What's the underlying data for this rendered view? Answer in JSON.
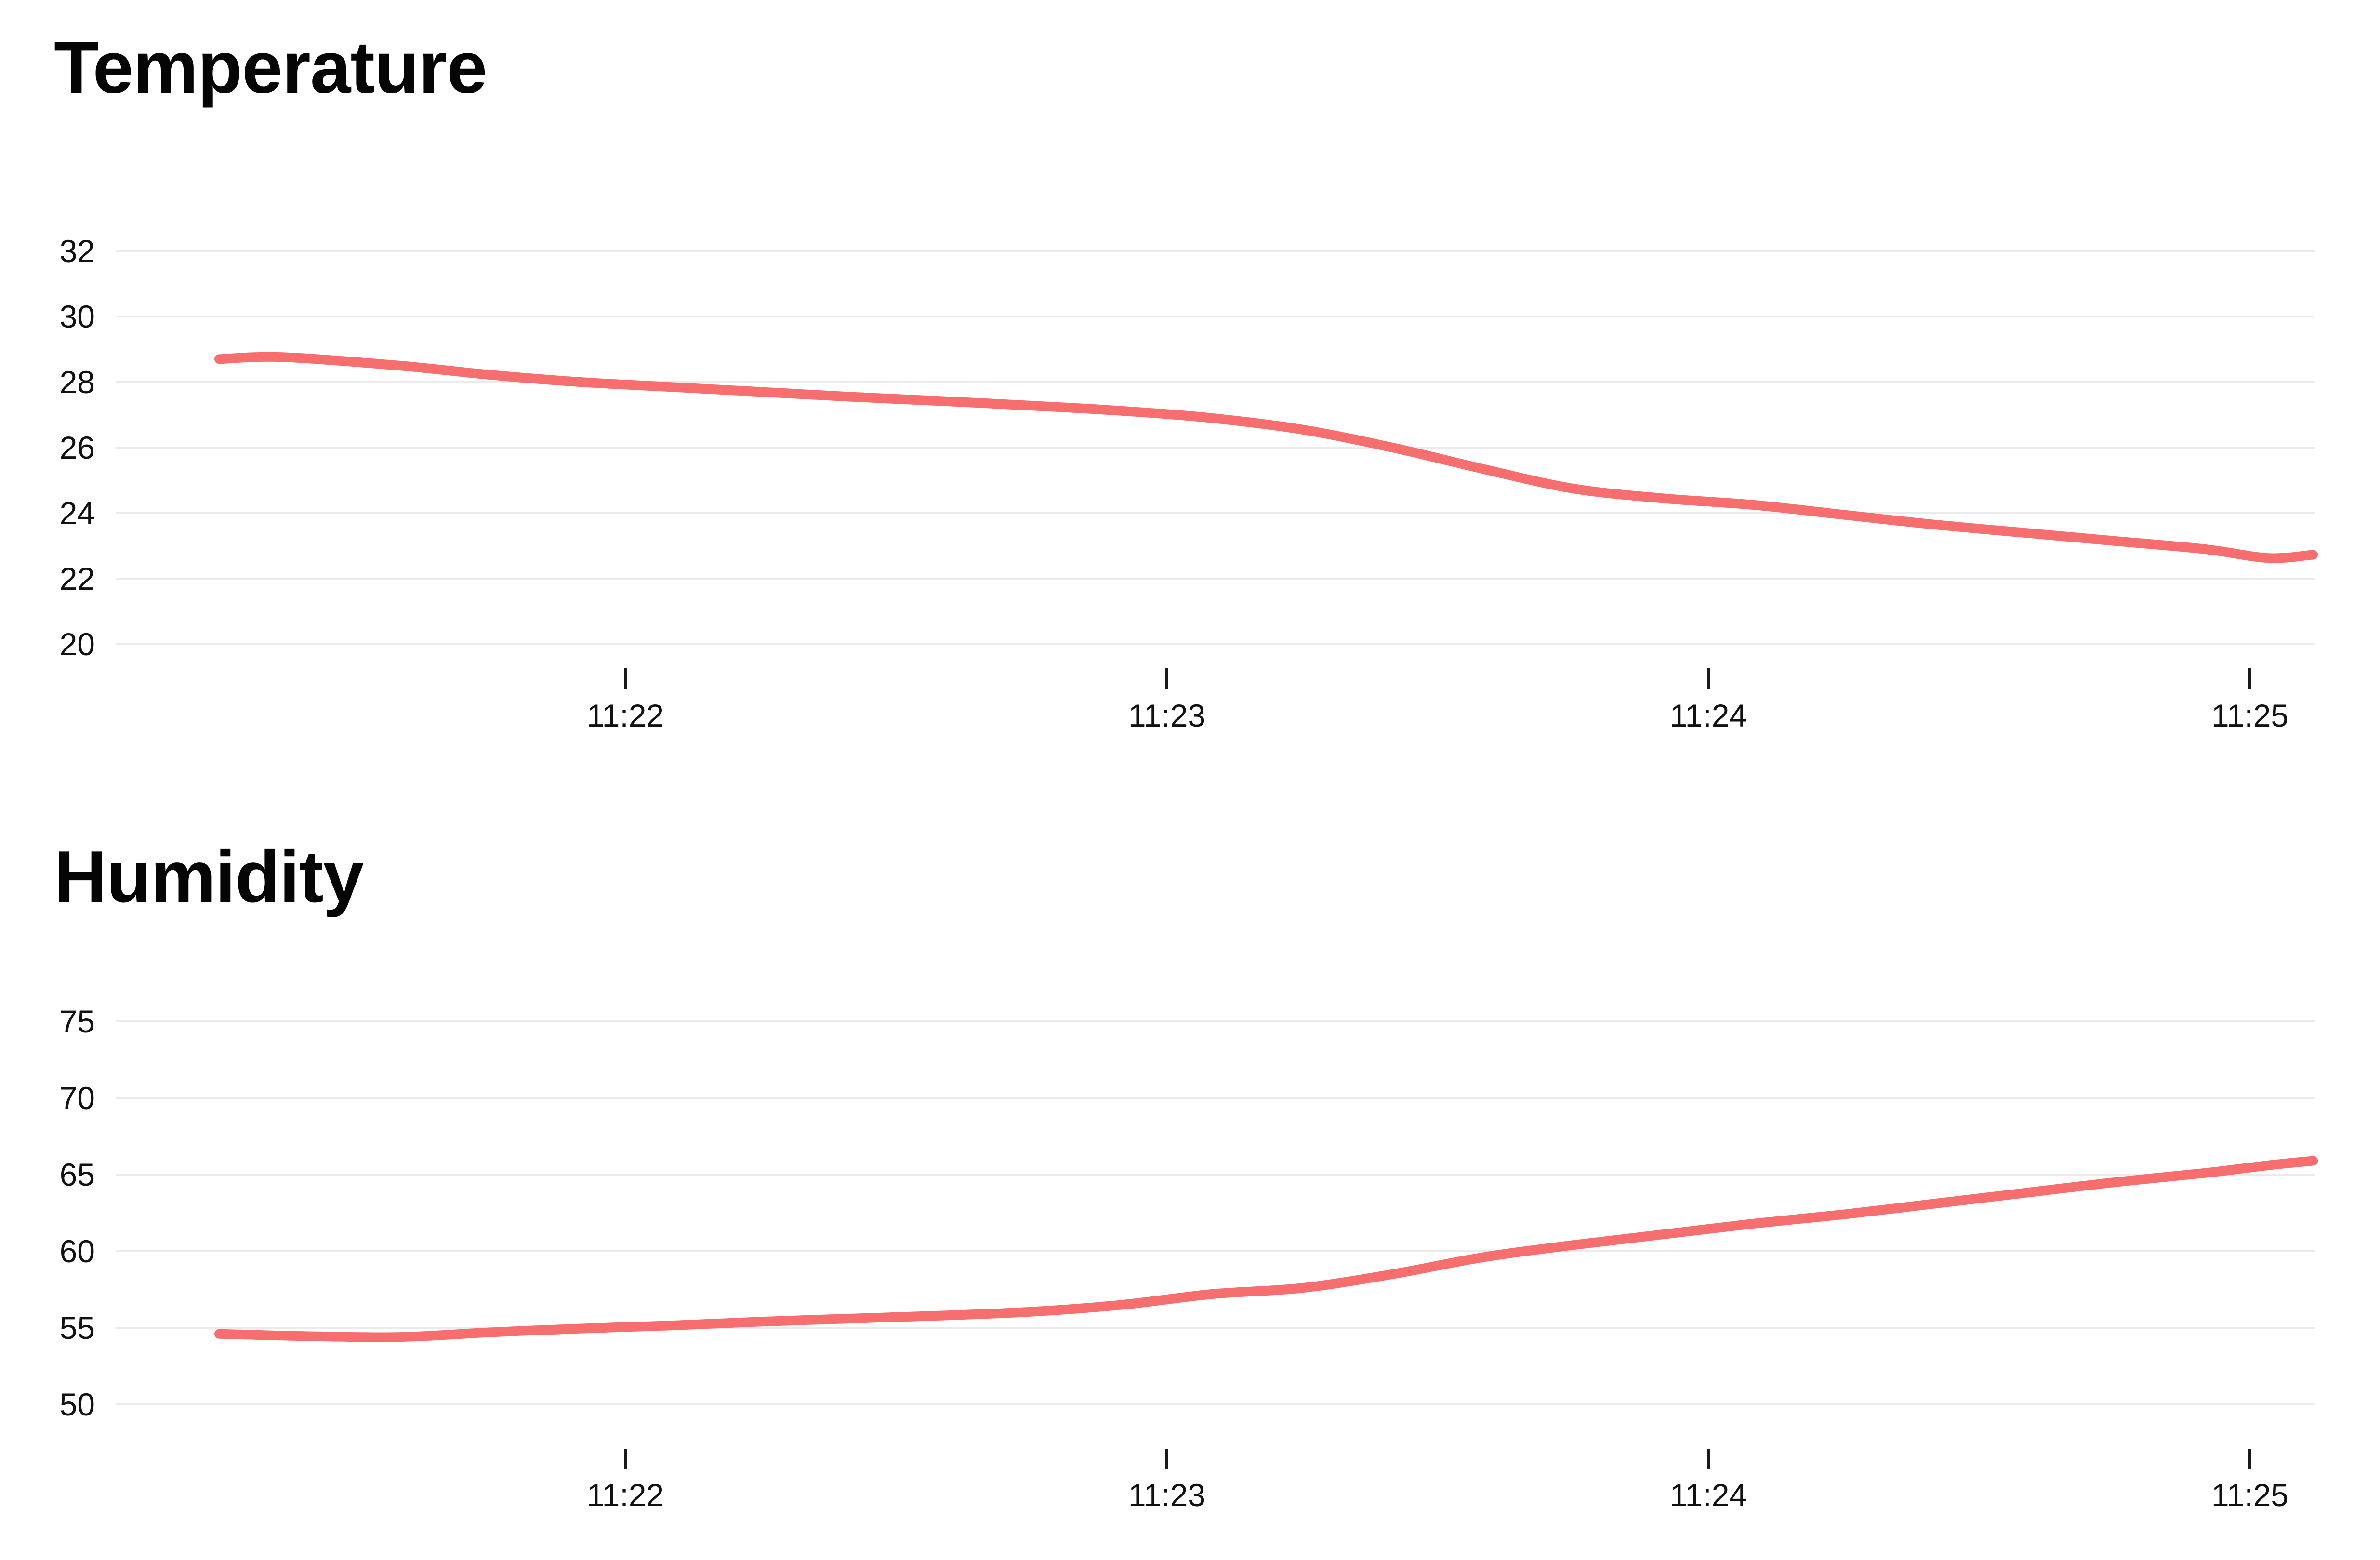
{
  "page": {
    "background_color": "#ffffff",
    "title_color": "#050505"
  },
  "chart_data": [
    {
      "type": "line",
      "title": "Temperature",
      "xlabel": "",
      "ylabel": "",
      "legend": "none",
      "grid": "horizontal-only",
      "line_color": "#f76e6e",
      "grid_color": "#ebebeb",
      "text_color": "#111111",
      "tick_color": "#1a1a1a",
      "y_tick_labels": [
        32,
        30,
        28,
        26,
        24,
        22,
        20
      ],
      "ylim": [
        20,
        32
      ],
      "x_tick_labels": [
        "11:22",
        "11:23",
        "11:24",
        "11:25"
      ],
      "x": [
        "11:21:15",
        "11:21:22",
        "11:21:35",
        "11:21:45",
        "11:21:55",
        "11:22:05",
        "11:22:15",
        "11:22:25",
        "11:22:35",
        "11:22:45",
        "11:22:55",
        "11:23:05",
        "11:23:15",
        "11:23:25",
        "11:23:35",
        "11:23:45",
        "11:23:55",
        "11:24:05",
        "11:24:15",
        "11:24:25",
        "11:24:35",
        "11:24:45",
        "11:24:55",
        "11:25:02",
        "11:25:07"
      ],
      "y": [
        28.7,
        28.76,
        28.5,
        28.22,
        28.0,
        27.85,
        27.7,
        27.55,
        27.42,
        27.28,
        27.12,
        26.9,
        26.55,
        26.0,
        25.35,
        24.75,
        24.45,
        24.25,
        23.95,
        23.65,
        23.4,
        23.15,
        22.9,
        22.63,
        22.73
      ]
    },
    {
      "type": "line",
      "title": "Humidity",
      "xlabel": "",
      "ylabel": "",
      "legend": "none",
      "grid": "horizontal-only",
      "line_color": "#f76e6e",
      "grid_color": "#ebebeb",
      "text_color": "#111111",
      "tick_color": "#1a1a1a",
      "y_tick_labels": [
        75,
        70,
        65,
        60,
        55,
        50
      ],
      "ylim": [
        50,
        75
      ],
      "x_tick_labels": [
        "11:22",
        "11:23",
        "11:24",
        "11:25"
      ],
      "x": [
        "11:21:15",
        "11:21:25",
        "11:21:35",
        "11:21:45",
        "11:21:55",
        "11:22:05",
        "11:22:15",
        "11:22:25",
        "11:22:35",
        "11:22:45",
        "11:22:55",
        "11:23:05",
        "11:23:15",
        "11:23:25",
        "11:23:35",
        "11:23:45",
        "11:23:55",
        "11:24:05",
        "11:24:15",
        "11:24:25",
        "11:24:35",
        "11:24:45",
        "11:24:55",
        "11:25:02",
        "11:25:07"
      ],
      "y": [
        54.6,
        54.45,
        54.4,
        54.7,
        54.95,
        55.15,
        55.4,
        55.6,
        55.8,
        56.05,
        56.5,
        57.2,
        57.6,
        58.5,
        59.6,
        60.4,
        61.1,
        61.8,
        62.4,
        63.1,
        63.8,
        64.5,
        65.1,
        65.6,
        65.9
      ]
    }
  ]
}
